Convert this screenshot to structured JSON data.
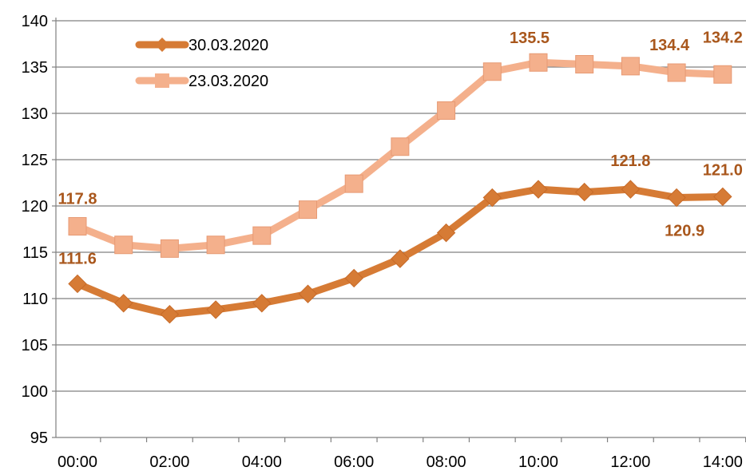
{
  "chart_data": {
    "type": "line",
    "title": "",
    "xlabel": "",
    "ylabel": "",
    "x": [
      "00:00",
      "01:00",
      "02:00",
      "03:00",
      "04:00",
      "05:00",
      "06:00",
      "07:00",
      "08:00",
      "09:00",
      "10:00",
      "11:00",
      "12:00",
      "13:00",
      "14:00"
    ],
    "x_tick_labels": [
      "00:00",
      "02:00",
      "04:00",
      "06:00",
      "08:00",
      "10:00",
      "12:00",
      "14:00"
    ],
    "y_ticks": [
      95,
      100,
      105,
      110,
      115,
      120,
      125,
      130,
      135,
      140
    ],
    "ylim": [
      95,
      140
    ],
    "grid": "horizontal",
    "legend_position": "top-left",
    "series": [
      {
        "name": "30.03.2020",
        "color": "#D67B35",
        "marker": "diamond",
        "values": [
          111.6,
          109.5,
          108.3,
          108.8,
          109.5,
          110.5,
          112.2,
          114.3,
          117.1,
          120.9,
          121.8,
          121.5,
          121.8,
          120.9,
          121.0
        ]
      },
      {
        "name": "23.03.2020",
        "color": "#F4B08C",
        "marker": "square",
        "values": [
          117.8,
          115.8,
          115.4,
          115.8,
          116.8,
          119.6,
          122.4,
          126.4,
          130.3,
          134.5,
          135.5,
          135.3,
          135.1,
          134.4,
          134.2
        ]
      }
    ],
    "data_labels": [
      {
        "series": 0,
        "index": 0,
        "text": "111.6"
      },
      {
        "series": 0,
        "index": 12,
        "text": "121.8"
      },
      {
        "series": 0,
        "index": 13,
        "text": "120.9"
      },
      {
        "series": 0,
        "index": 14,
        "text": "121.0"
      },
      {
        "series": 1,
        "index": 0,
        "text": "117.8"
      },
      {
        "series": 1,
        "index": 10,
        "text": "135.5"
      },
      {
        "series": 1,
        "index": 13,
        "text": "134.4"
      },
      {
        "series": 1,
        "index": 14,
        "text": "134.2"
      }
    ],
    "data_label_color": "#A9571C"
  }
}
